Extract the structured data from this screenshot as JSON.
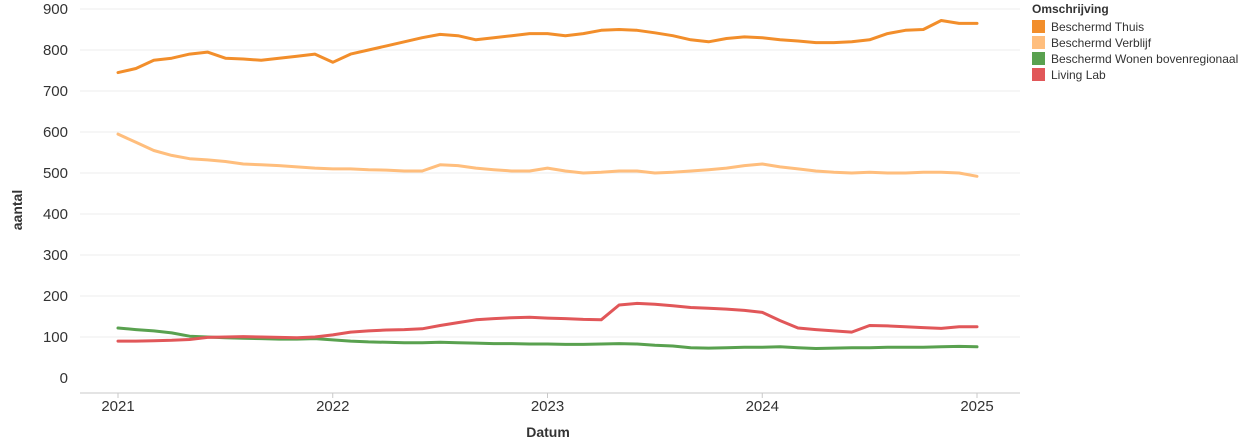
{
  "chart_data": {
    "type": "line",
    "xlabel": "Datum",
    "ylabel": "aantal",
    "x_ticks": [
      "2021",
      "2022",
      "2023",
      "2024",
      "2025"
    ],
    "y_ticks": [
      0,
      100,
      200,
      300,
      400,
      500,
      600,
      700,
      800,
      900
    ],
    "xlim": [
      "2021-01",
      "2025-01"
    ],
    "ylim": [
      0,
      900
    ],
    "grid": true,
    "legend": {
      "title": "Omschrijving",
      "position": "top-right"
    },
    "series": [
      {
        "name": "Beschermd Thuis",
        "color": "#f28e2b",
        "x": [
          "2021-01",
          "2021-02",
          "2021-03",
          "2021-04",
          "2021-05",
          "2021-06",
          "2021-07",
          "2021-08",
          "2021-09",
          "2021-10",
          "2021-11",
          "2021-12",
          "2022-01",
          "2022-02",
          "2022-03",
          "2022-04",
          "2022-05",
          "2022-06",
          "2022-07",
          "2022-08",
          "2022-09",
          "2022-10",
          "2022-11",
          "2022-12",
          "2023-01",
          "2023-02",
          "2023-03",
          "2023-04",
          "2023-05",
          "2023-06",
          "2023-07",
          "2023-08",
          "2023-09",
          "2023-10",
          "2023-11",
          "2023-12",
          "2024-01",
          "2024-02",
          "2024-03",
          "2024-04",
          "2024-05",
          "2024-06",
          "2024-07",
          "2024-08",
          "2024-09",
          "2024-10",
          "2024-11",
          "2024-12",
          "2025-01"
        ],
        "values": [
          745,
          755,
          775,
          780,
          790,
          795,
          780,
          778,
          775,
          780,
          785,
          790,
          770,
          790,
          800,
          810,
          820,
          830,
          838,
          835,
          825,
          830,
          835,
          840,
          840,
          835,
          840,
          848,
          850,
          848,
          842,
          835,
          825,
          820,
          828,
          832,
          830,
          825,
          822,
          818,
          818,
          820,
          825,
          840,
          848,
          850,
          872,
          865,
          865
        ]
      },
      {
        "name": "Beschermd Verblijf",
        "color": "#ffbe7d",
        "x": [
          "2021-01",
          "2021-02",
          "2021-03",
          "2021-04",
          "2021-05",
          "2021-06",
          "2021-07",
          "2021-08",
          "2021-09",
          "2021-10",
          "2021-11",
          "2021-12",
          "2022-01",
          "2022-02",
          "2022-03",
          "2022-04",
          "2022-05",
          "2022-06",
          "2022-07",
          "2022-08",
          "2022-09",
          "2022-10",
          "2022-11",
          "2022-12",
          "2023-01",
          "2023-02",
          "2023-03",
          "2023-04",
          "2023-05",
          "2023-06",
          "2023-07",
          "2023-08",
          "2023-09",
          "2023-10",
          "2023-11",
          "2023-12",
          "2024-01",
          "2024-02",
          "2024-03",
          "2024-04",
          "2024-05",
          "2024-06",
          "2024-07",
          "2024-08",
          "2024-09",
          "2024-10",
          "2024-11",
          "2024-12",
          "2025-01"
        ],
        "values": [
          595,
          575,
          555,
          543,
          535,
          532,
          528,
          522,
          520,
          518,
          515,
          512,
          510,
          510,
          508,
          507,
          505,
          505,
          520,
          518,
          512,
          508,
          505,
          505,
          512,
          505,
          500,
          502,
          505,
          505,
          500,
          502,
          505,
          508,
          512,
          518,
          522,
          515,
          510,
          505,
          502,
          500,
          502,
          500,
          500,
          502,
          502,
          500,
          492
        ]
      },
      {
        "name": "Beschermd Wonen bovenregionaal",
        "color": "#59a14f",
        "x": [
          "2021-01",
          "2021-02",
          "2021-03",
          "2021-04",
          "2021-05",
          "2021-06",
          "2021-07",
          "2021-08",
          "2021-09",
          "2021-10",
          "2021-11",
          "2021-12",
          "2022-01",
          "2022-02",
          "2022-03",
          "2022-04",
          "2022-05",
          "2022-06",
          "2022-07",
          "2022-08",
          "2022-09",
          "2022-10",
          "2022-11",
          "2022-12",
          "2023-01",
          "2023-02",
          "2023-03",
          "2023-04",
          "2023-05",
          "2023-06",
          "2023-07",
          "2023-08",
          "2023-09",
          "2023-10",
          "2023-11",
          "2023-12",
          "2024-01",
          "2024-02",
          "2024-03",
          "2024-04",
          "2024-05",
          "2024-06",
          "2024-07",
          "2024-08",
          "2024-09",
          "2024-10",
          "2024-11",
          "2024-12",
          "2025-01"
        ],
        "values": [
          122,
          118,
          115,
          110,
          102,
          100,
          98,
          97,
          96,
          95,
          95,
          96,
          93,
          90,
          88,
          87,
          86,
          86,
          87,
          86,
          85,
          84,
          84,
          83,
          83,
          82,
          82,
          83,
          84,
          83,
          80,
          78,
          74,
          73,
          74,
          75,
          75,
          76,
          74,
          72,
          73,
          74,
          74,
          75,
          75,
          75,
          76,
          77,
          76
        ]
      },
      {
        "name": "Living Lab",
        "color": "#e15759",
        "x": [
          "2021-01",
          "2021-02",
          "2021-03",
          "2021-04",
          "2021-05",
          "2021-06",
          "2021-07",
          "2021-08",
          "2021-09",
          "2021-10",
          "2021-11",
          "2021-12",
          "2022-01",
          "2022-02",
          "2022-03",
          "2022-04",
          "2022-05",
          "2022-06",
          "2022-07",
          "2022-08",
          "2022-09",
          "2022-10",
          "2022-11",
          "2022-12",
          "2023-01",
          "2023-02",
          "2023-03",
          "2023-04",
          "2023-05",
          "2023-06",
          "2023-07",
          "2023-08",
          "2023-09",
          "2023-10",
          "2023-11",
          "2023-12",
          "2024-01",
          "2024-02",
          "2024-03",
          "2024-04",
          "2024-05",
          "2024-06",
          "2024-07",
          "2024-08",
          "2024-09",
          "2024-10",
          "2024-11",
          "2024-12",
          "2025-01"
        ],
        "values": [
          90,
          90,
          91,
          92,
          94,
          99,
          100,
          101,
          100,
          99,
          98,
          100,
          105,
          112,
          115,
          117,
          118,
          120,
          128,
          135,
          142,
          145,
          147,
          148,
          146,
          145,
          143,
          142,
          178,
          182,
          180,
          176,
          172,
          170,
          168,
          165,
          160,
          140,
          122,
          118,
          115,
          112,
          128,
          127,
          125,
          123,
          121,
          125,
          125
        ]
      }
    ]
  }
}
